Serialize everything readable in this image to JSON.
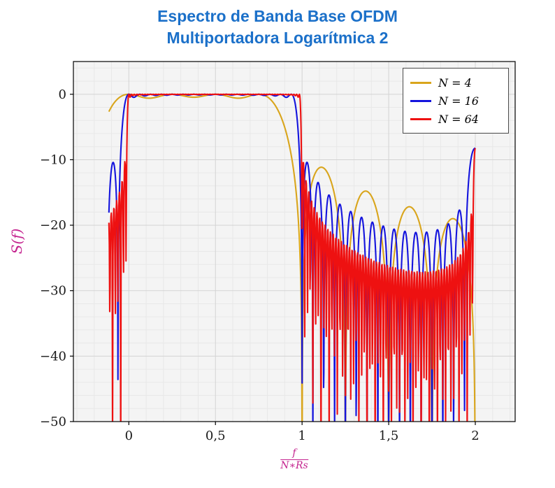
{
  "chart_data": {
    "type": "line",
    "title": "Espectro de Banda Base OFDM Multiportadora Logarítmica 2",
    "title_lines": [
      "Espectro de Banda Base OFDM",
      "Multiportadora Logarítmica 2"
    ],
    "ylabel": "S(f)",
    "xlabel": "f/(N∗Rs)",
    "xlabel_num": "f",
    "xlabel_den": "N∗Rs",
    "xlim": [
      -0.32,
      2.23
    ],
    "ylim": [
      -50,
      5
    ],
    "data_x_range": [
      -0.115,
      2.0
    ],
    "grid": "both",
    "legend_position": "top-right",
    "x_ticks": [
      {
        "v": 0,
        "label": "0"
      },
      {
        "v": 0.5,
        "label": "0,5"
      },
      {
        "v": 1,
        "label": "1"
      },
      {
        "v": 1.5,
        "label": "1,5"
      },
      {
        "v": 2,
        "label": "2"
      }
    ],
    "y_ticks": [
      {
        "v": 0,
        "label": "0"
      },
      {
        "v": -10,
        "label": "−10"
      },
      {
        "v": -20,
        "label": "−20"
      },
      {
        "v": -30,
        "label": "−30"
      },
      {
        "v": -40,
        "label": "−40"
      },
      {
        "v": -50,
        "label": "−50"
      }
    ],
    "model": "S_dB(x) = 10*log10( sum_{k=0..N-1} sinc^2(N*x - k) ), with aliased spectral replica at x=2 (weight below) for N=16 and N=64; x = f/(N*Rs)",
    "replica_weight": 0.15,
    "series": [
      {
        "name": "N4",
        "label": "N = 4",
        "N": 4,
        "color": "#d9a51c",
        "samples": 1500,
        "replica": false
      },
      {
        "name": "N16",
        "label": "N = 16",
        "N": 16,
        "color": "#1414dd",
        "samples": 1500,
        "replica": true
      },
      {
        "name": "N64",
        "label": "N = 64",
        "N": 64,
        "color": "#ee1111",
        "samples": 900,
        "replica": true
      }
    ],
    "colors": {
      "title": "#1b70c9",
      "axis_label": "#c4248f",
      "plot_background": "#f4f4f4",
      "major_grid": "#d3d3d3",
      "minor_grid": "#e8e8e8",
      "frame": "#000000"
    }
  }
}
